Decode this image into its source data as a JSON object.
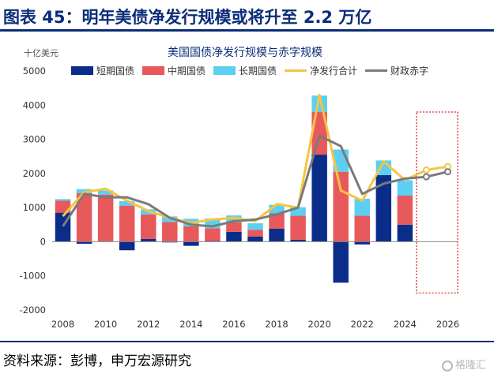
{
  "header": {
    "title": "图表 45：明年美债净发行规模或将升至 2.2 万亿"
  },
  "footer": {
    "source": "资料来源：彭博，申万宏源研究",
    "watermark": "格隆汇"
  },
  "chart_data": {
    "type": "bar",
    "title": "美国国债净发行规模与赤字规模",
    "ylabel": "十亿美元",
    "ylim": [
      -2000,
      5000
    ],
    "yticks": [
      -2000,
      -1000,
      0,
      1000,
      2000,
      3000,
      4000,
      5000
    ],
    "xticks": [
      2008,
      2010,
      2012,
      2014,
      2016,
      2018,
      2020,
      2022,
      2024,
      2026
    ],
    "categories": [
      2008,
      2009,
      2010,
      2011,
      2012,
      2013,
      2014,
      2015,
      2016,
      2017,
      2018,
      2019,
      2020,
      2021,
      2022,
      2023,
      2024,
      2025,
      2026
    ],
    "series": [
      {
        "name": "短期国债",
        "kind": "bar",
        "color": "#0b2d8a",
        "values": [
          850,
          -60,
          0,
          -250,
          80,
          -20,
          -120,
          20,
          290,
          150,
          380,
          60,
          2550,
          -1200,
          -80,
          1950,
          500,
          null,
          null
        ]
      },
      {
        "name": "中期国债",
        "kind": "bar",
        "color": "#e8595b",
        "values": [
          350,
          1420,
          1380,
          1050,
          720,
          580,
          450,
          370,
          280,
          200,
          450,
          700,
          1250,
          2050,
          760,
          0,
          850,
          null,
          null
        ]
      },
      {
        "name": "长期国债",
        "kind": "bar",
        "color": "#5ccff2",
        "values": [
          50,
          120,
          120,
          140,
          150,
          160,
          220,
          290,
          200,
          190,
          250,
          250,
          480,
          650,
          500,
          430,
          450,
          null,
          null
        ]
      },
      {
        "name": "净发行合计",
        "kind": "line",
        "color": "#f5c542",
        "values": [
          750,
          1450,
          1550,
          1200,
          900,
          700,
          550,
          650,
          700,
          600,
          1100,
          1000,
          4300,
          1500,
          1200,
          2350,
          1800,
          2100,
          2200
        ]
      },
      {
        "name": "财政赤字",
        "kind": "line",
        "color": "#7a7a7a",
        "values": [
          450,
          1400,
          1300,
          1300,
          1100,
          700,
          500,
          450,
          600,
          650,
          800,
          1000,
          3100,
          2800,
          1400,
          1700,
          1850,
          1900,
          2050
        ]
      }
    ],
    "forecast_highlight": {
      "from": 2025,
      "to": 2026,
      "color": "#e84545",
      "style": "dotted"
    }
  }
}
